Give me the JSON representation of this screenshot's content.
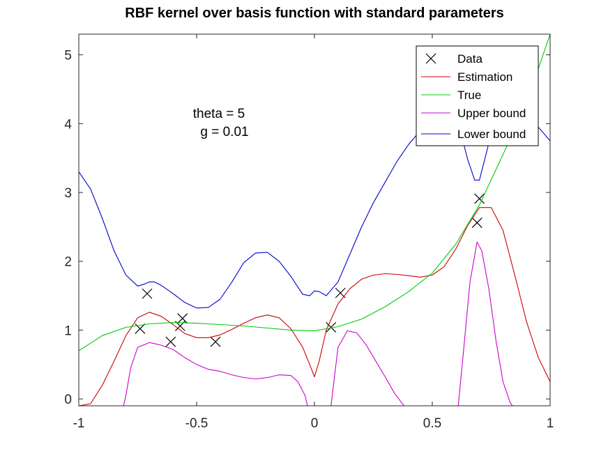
{
  "chart_data": {
    "type": "line",
    "title": "RBF kernel over basis function with standard parameters",
    "xlabel": "",
    "ylabel": "",
    "xlim": [
      -1,
      1
    ],
    "ylim": [
      -0.1,
      5.3
    ],
    "xticks": [
      -1,
      -0.5,
      0,
      0.5,
      1
    ],
    "xtick_labels": [
      "-1",
      "-0.5",
      "0",
      "0.5",
      "1"
    ],
    "yticks": [
      0,
      1,
      2,
      3,
      4,
      5
    ],
    "ytick_labels": [
      "0",
      "1",
      "2",
      "3",
      "4",
      "5"
    ],
    "grid": false,
    "legend_position": "top-right",
    "annotations": [
      "theta = 5",
      "g = 0.01"
    ],
    "series": [
      {
        "name": "Data",
        "kind": "markers",
        "marker": "x",
        "color": "#000000",
        "x": [
          -0.74,
          -0.71,
          -0.61,
          -0.57,
          -0.56,
          -0.42,
          0.07,
          0.11,
          0.69,
          0.7
        ],
        "y": [
          1.02,
          1.53,
          0.83,
          1.06,
          1.17,
          0.83,
          1.04,
          1.54,
          2.56,
          2.91
        ]
      },
      {
        "name": "Estimation",
        "kind": "line",
        "color": "#cc0000",
        "x": [
          -1.0,
          -0.95,
          -0.9,
          -0.85,
          -0.8,
          -0.75,
          -0.7,
          -0.65,
          -0.6,
          -0.55,
          -0.5,
          -0.45,
          -0.4,
          -0.35,
          -0.3,
          -0.25,
          -0.2,
          -0.15,
          -0.1,
          -0.05,
          -0.02,
          0.0,
          0.02,
          0.05,
          0.1,
          0.15,
          0.2,
          0.25,
          0.3,
          0.35,
          0.4,
          0.45,
          0.5,
          0.55,
          0.6,
          0.65,
          0.7,
          0.75,
          0.8,
          0.85,
          0.9,
          0.95,
          1.0
        ],
        "y": [
          -0.1,
          -0.07,
          0.2,
          0.55,
          0.92,
          1.18,
          1.26,
          1.2,
          1.08,
          0.95,
          0.89,
          0.89,
          0.93,
          1.01,
          1.1,
          1.18,
          1.22,
          1.18,
          1.02,
          0.75,
          0.5,
          0.32,
          0.55,
          1.0,
          1.38,
          1.6,
          1.74,
          1.8,
          1.82,
          1.81,
          1.79,
          1.77,
          1.8,
          1.92,
          2.18,
          2.52,
          2.78,
          2.78,
          2.45,
          1.8,
          1.12,
          0.6,
          0.25
        ]
      },
      {
        "name": "True",
        "kind": "line",
        "color": "#00cc00",
        "x": [
          -1.0,
          -0.9,
          -0.8,
          -0.7,
          -0.6,
          -0.5,
          -0.4,
          -0.3,
          -0.2,
          -0.1,
          0.0,
          0.1,
          0.2,
          0.3,
          0.4,
          0.5,
          0.6,
          0.7,
          0.8,
          0.9,
          1.0
        ],
        "y": [
          0.7,
          0.92,
          1.04,
          1.09,
          1.11,
          1.1,
          1.08,
          1.06,
          1.03,
          1.0,
          0.99,
          1.05,
          1.16,
          1.34,
          1.56,
          1.83,
          2.25,
          2.82,
          3.55,
          4.3,
          5.3
        ]
      },
      {
        "name": "Upper bound",
        "kind": "line",
        "color": "#cc00cc",
        "x": [
          -0.81,
          -0.8,
          -0.78,
          -0.75,
          -0.7,
          -0.65,
          -0.6,
          -0.55,
          -0.5,
          -0.45,
          -0.4,
          -0.35,
          -0.3,
          -0.25,
          -0.2,
          -0.15,
          -0.1,
          -0.07,
          -0.04,
          -0.03,
          null,
          0.07,
          0.1,
          0.14,
          0.18,
          0.22,
          0.26,
          0.3,
          0.34,
          0.38,
          null,
          0.61,
          0.63,
          0.66,
          0.69,
          0.71,
          0.74,
          0.77,
          0.8,
          0.83,
          0.84
        ],
        "y": [
          -0.1,
          0.05,
          0.45,
          0.75,
          0.82,
          0.78,
          0.72,
          0.6,
          0.5,
          0.43,
          0.4,
          0.35,
          0.31,
          0.29,
          0.31,
          0.35,
          0.34,
          0.25,
          0.05,
          -0.1,
          null,
          -0.1,
          0.75,
          0.99,
          0.96,
          0.78,
          0.55,
          0.32,
          0.08,
          -0.1,
          null,
          -0.1,
          0.6,
          1.7,
          2.28,
          2.15,
          1.6,
          0.85,
          0.25,
          -0.05,
          -0.1
        ]
      },
      {
        "name": "Lower bound",
        "kind": "line",
        "color": "#0000cc",
        "x": [
          -1.0,
          -0.95,
          -0.9,
          -0.85,
          -0.8,
          -0.75,
          -0.72,
          -0.7,
          -0.68,
          -0.65,
          -0.6,
          -0.55,
          -0.5,
          -0.45,
          -0.4,
          -0.35,
          -0.3,
          -0.25,
          -0.2,
          -0.15,
          -0.1,
          -0.05,
          -0.02,
          0.0,
          0.02,
          0.05,
          0.1,
          0.15,
          0.2,
          0.25,
          0.3,
          0.35,
          0.4,
          0.45,
          0.5,
          0.55,
          0.6,
          0.63,
          0.65,
          0.68,
          0.7,
          0.72,
          0.75,
          0.8,
          0.85,
          0.9,
          0.95,
          1.0
        ],
        "y": [
          3.3,
          3.05,
          2.62,
          2.15,
          1.8,
          1.64,
          1.67,
          1.7,
          1.7,
          1.65,
          1.53,
          1.4,
          1.32,
          1.33,
          1.45,
          1.7,
          1.98,
          2.12,
          2.13,
          2.0,
          1.78,
          1.52,
          1.5,
          1.57,
          1.56,
          1.5,
          1.7,
          2.1,
          2.5,
          2.85,
          3.15,
          3.45,
          3.7,
          3.9,
          4.02,
          4.08,
          3.95,
          3.75,
          3.48,
          3.18,
          3.18,
          3.45,
          3.85,
          4.2,
          4.3,
          4.15,
          3.95,
          3.75
        ]
      }
    ]
  }
}
